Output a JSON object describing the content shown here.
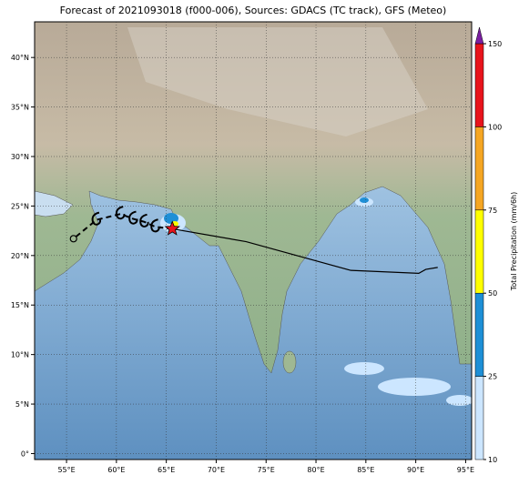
{
  "map": {
    "title": "Forecast of 2021093018 (f000-006), Sources: GDACS (TC track), GFS (Meteo)",
    "xlim": [
      51.8,
      95.6
    ],
    "ylim": [
      -0.6,
      43.6
    ],
    "lon_ticks": [
      {
        "value": 55,
        "label": "55°E"
      },
      {
        "value": 60,
        "label": "60°E"
      },
      {
        "value": 65,
        "label": "65°E"
      },
      {
        "value": 70,
        "label": "70°E"
      },
      {
        "value": 75,
        "label": "75°E"
      },
      {
        "value": 80,
        "label": "80°E"
      },
      {
        "value": 85,
        "label": "85°E"
      },
      {
        "value": 90,
        "label": "90°E"
      },
      {
        "value": 95,
        "label": "95°E"
      }
    ],
    "lat_ticks": [
      {
        "value": 0,
        "label": "0°"
      },
      {
        "value": 5,
        "label": "5°N"
      },
      {
        "value": 10,
        "label": "10°N"
      },
      {
        "value": 15,
        "label": "15°N"
      },
      {
        "value": 20,
        "label": "20°N"
      },
      {
        "value": 25,
        "label": "25°N"
      },
      {
        "value": 30,
        "label": "30°N"
      },
      {
        "value": 35,
        "label": "35°N"
      },
      {
        "value": 40,
        "label": "40°N"
      }
    ],
    "past_track": {
      "lon": [
        65.6,
        73.0,
        83.5,
        90.3,
        91.0,
        92.2
      ],
      "lat": [
        22.7,
        21.4,
        18.5,
        18.2,
        18.6,
        18.8
      ]
    },
    "forecast_track": {
      "lon": [
        65.6,
        63.9,
        62.8,
        61.7,
        60.4,
        58.0,
        55.7
      ],
      "lat": [
        22.7,
        22.9,
        23.4,
        23.7,
        24.2,
        23.6,
        21.7
      ]
    },
    "colorbar": {
      "label": "Total Precipitation (mm/6h)",
      "ticks": [
        10,
        25,
        50,
        75,
        100,
        150
      ],
      "colors": [
        "#cce6ff",
        "#1e8fd6",
        "#ffff00",
        "#f5a623",
        "#e8141c"
      ],
      "extend_color": "#7b1fa2"
    }
  }
}
